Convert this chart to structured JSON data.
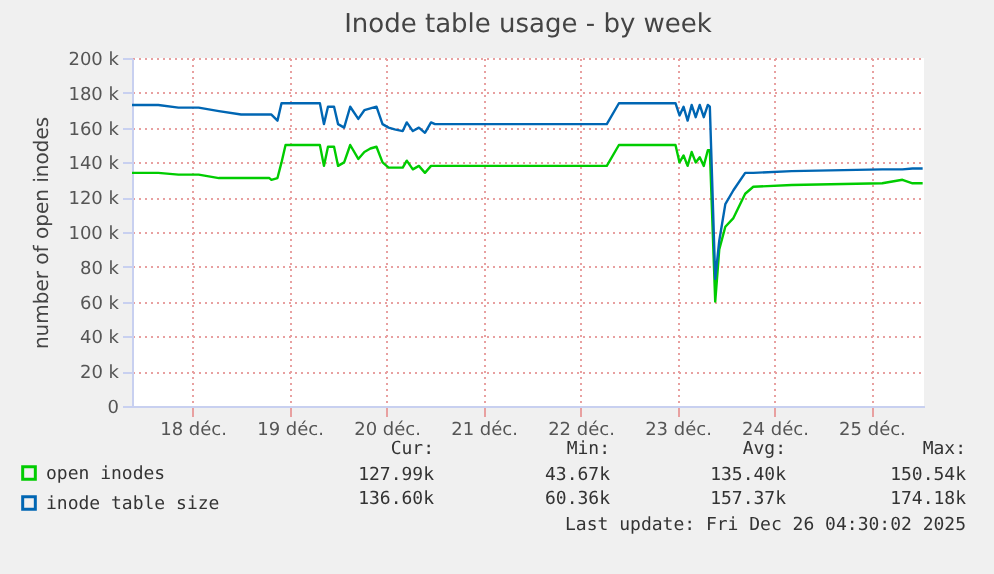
{
  "chart_data": {
    "type": "line",
    "title": "Inode table usage - by week",
    "ylabel": "number of open inodes",
    "xlim": [
      "--12-17T21:00",
      "--12-26T01:00"
    ],
    "xticks": [
      {
        "value": "--12-18T12:00",
        "label": "18 déc."
      },
      {
        "value": "--12-19T12:00",
        "label": "19 déc."
      },
      {
        "value": "--12-20T12:00",
        "label": "20 déc."
      },
      {
        "value": "--12-21T12:00",
        "label": "21 déc."
      },
      {
        "value": "--12-22T12:00",
        "label": "22 déc."
      },
      {
        "value": "--12-23T12:00",
        "label": "23 déc."
      },
      {
        "value": "--12-24T12:00",
        "label": "24 déc."
      },
      {
        "value": "--12-25T12:00",
        "label": "25 déc."
      }
    ],
    "ylim": [
      0,
      200000
    ],
    "yticks": [
      0,
      {
        "value": 20000,
        "label": "20 k"
      },
      {
        "value": 40000,
        "label": "40 k"
      },
      {
        "value": 60000,
        "label": "60 k"
      },
      {
        "value": 80000,
        "label": "80 k"
      },
      {
        "value": 100000,
        "label": "100 k"
      },
      {
        "value": 120000,
        "label": "120 k"
      },
      {
        "value": 140000,
        "label": "140 k"
      },
      {
        "value": 160000,
        "label": "160 k"
      },
      {
        "value": 180000,
        "label": "180 k"
      },
      {
        "value": 200000,
        "label": "200 k"
      }
    ],
    "grid": true,
    "legend": "bottom",
    "x": [
      "--12-17T21:00",
      "--12-18T03:30",
      "--12-18T08:30",
      "--12-18T13:30",
      "--12-18T18:30",
      "--12-19T00:00",
      "--12-19T07:00",
      "--12-19T07:30",
      "--12-19T09:00",
      "--12-19T10:00",
      "--12-19T11:00",
      "--12-19T19:30",
      "--12-19T20:30",
      "--12-19T21:30",
      "--12-19T23:00",
      "--12-20T00:00",
      "--12-20T01:30",
      "--12-20T03:00",
      "--12-20T05:00",
      "--12-20T06:30",
      "--12-20T08:00",
      "--12-20T09:30",
      "--12-20T11:00",
      "--12-20T12:30",
      "--12-20T14:00",
      "--12-20T16:00",
      "--12-20T17:00",
      "--12-20T18:30",
      "--12-20T20:00",
      "--12-20T21:30",
      "--12-20T23:00",
      "--12-21T00:00",
      "--12-22T18:30",
      "--12-22T21:30",
      "--12-23T11:30",
      "--12-23T12:30",
      "--12-23T13:30",
      "--12-23T14:30",
      "--12-23T15:30",
      "--12-23T16:30",
      "--12-23T17:30",
      "--12-23T18:30",
      "--12-23T19:30",
      "--12-23T20:00",
      "--12-23T21:20",
      "--12-23T22:20",
      "--12-23T23:50",
      "--12-24T01:50",
      "--12-24T04:45",
      "--12-24T06:45",
      "--12-24T16:15",
      "--12-25T14:40",
      "--12-25T19:40",
      "--12-25T22:10",
      "--12-26T00:40"
    ],
    "series": [
      {
        "name": "open inodes",
        "color": "#00cc00",
        "values": [
          134000,
          134000,
          133000,
          133000,
          131000,
          131000,
          131000,
          130000,
          131000,
          140000,
          150000,
          150000,
          138000,
          149000,
          149000,
          138000,
          140000,
          150000,
          142000,
          146000,
          148000,
          149000,
          140000,
          137000,
          137000,
          137000,
          141000,
          136000,
          138000,
          134000,
          138000,
          138000,
          138000,
          150000,
          150000,
          140000,
          144000,
          138000,
          146000,
          140000,
          143000,
          138000,
          147000,
          147000,
          60000,
          90000,
          103000,
          108000,
          122000,
          126000,
          127000,
          128000,
          130000,
          128000,
          128000
        ]
      },
      {
        "name": "inode table size",
        "color": "#0066b3",
        "values": [
          173000,
          173000,
          171500,
          171500,
          169500,
          167500,
          167500,
          167500,
          164000,
          174000,
          174000,
          174000,
          162000,
          172000,
          172000,
          162000,
          160000,
          172000,
          165000,
          170000,
          171000,
          172000,
          162000,
          160000,
          159000,
          158000,
          163000,
          158000,
          160000,
          157000,
          163000,
          162000,
          162000,
          174000,
          174000,
          167000,
          172000,
          164000,
          173000,
          166000,
          173000,
          166000,
          173000,
          172000,
          73000,
          95000,
          116000,
          124000,
          134000,
          134000,
          135000,
          136000,
          136000,
          136500,
          136500
        ]
      }
    ],
    "annotations": [
      "Cur:",
      "Min:",
      "Avg:",
      "Max:",
      "127.99k",
      "43.67k",
      "135.40k",
      "150.54k",
      "136.60k",
      "60.36k",
      "157.37k",
      "174.18k",
      "Last update: Fri Dec 26 04:30:02 2025"
    ]
  }
}
